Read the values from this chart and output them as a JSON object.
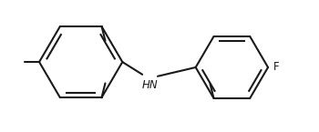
{
  "bg_color": "#ffffff",
  "line_color": "#1a1a1a",
  "line_width": 1.5,
  "text_color": "#1a1a1a",
  "label_fontsize": 8.5,
  "hn_label": "HN",
  "f_label": "F",
  "figsize": [
    3.5,
    1.45
  ],
  "dpi": 100
}
